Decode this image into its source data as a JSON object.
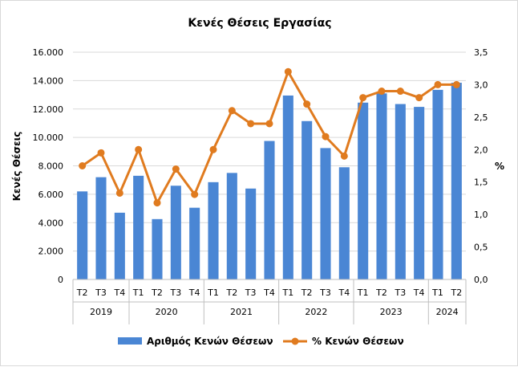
{
  "chart_data": {
    "type": "bar+line",
    "title": "Κενές Θέσεις Εργασίας",
    "categories": [
      "T2",
      "T3",
      "T4",
      "T1",
      "T2",
      "T3",
      "T4",
      "T1",
      "T2",
      "T3",
      "T4",
      "T1",
      "T2",
      "T3",
      "T4",
      "T1",
      "T2",
      "T3",
      "T4",
      "T1",
      "T2"
    ],
    "years": [
      {
        "label": "2019",
        "count": 3
      },
      {
        "label": "2020",
        "count": 4
      },
      {
        "label": "2021",
        "count": 4
      },
      {
        "label": "2022",
        "count": 4
      },
      {
        "label": "2023",
        "count": 4
      },
      {
        "label": "2024",
        "count": 2
      }
    ],
    "series": [
      {
        "name": "Αριθμός Κενών Θέσεων",
        "type": "bar",
        "axis": "left",
        "color": "#4a86d4",
        "values": [
          6200,
          7200,
          4700,
          7300,
          4250,
          6600,
          5050,
          6850,
          7500,
          6400,
          9750,
          12950,
          11150,
          9250,
          7900,
          12450,
          13100,
          12350,
          12150,
          13350,
          13850
        ]
      },
      {
        "name": "% Κενών Θέσεων",
        "type": "line",
        "axis": "right",
        "color": "#e07b1f",
        "values": [
          1.75,
          1.95,
          1.33,
          2.0,
          1.18,
          1.7,
          1.31,
          2.0,
          2.6,
          2.4,
          2.4,
          3.2,
          2.7,
          2.2,
          1.9,
          2.8,
          2.9,
          2.9,
          2.8,
          3.0,
          3.0
        ]
      }
    ],
    "ylabel": "Κενές Θέσεις",
    "y2label": "%",
    "ylim": [
      0,
      16000
    ],
    "y2lim": [
      0,
      3.5
    ],
    "yticks": [
      "0",
      "2.000",
      "4.000",
      "6.000",
      "8.000",
      "10.000",
      "12.000",
      "14.000",
      "16.000"
    ],
    "y2ticks": [
      "0,0",
      "0,5",
      "1,0",
      "1,5",
      "2,0",
      "2,5",
      "3,0",
      "3,5"
    ],
    "grid": true,
    "legend": "bottom"
  }
}
